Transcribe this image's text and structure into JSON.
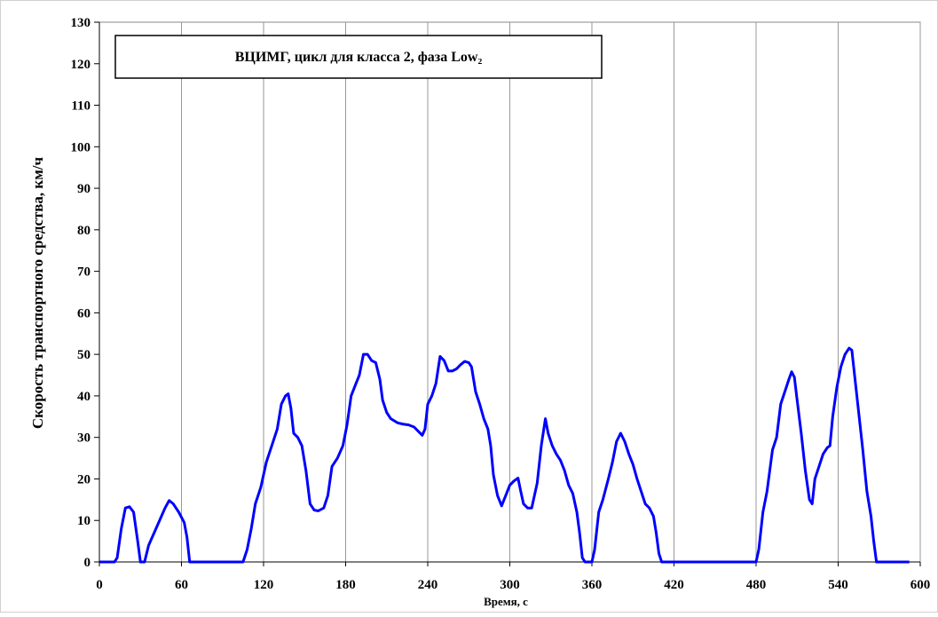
{
  "chart_data": {
    "type": "line",
    "title": "ВЦИМГ, цикл для класса 2, фаза Low₂",
    "xlabel": "Время, с",
    "ylabel": "Скорость транспортного средства, км/ч",
    "xlim": [
      0,
      600
    ],
    "xticks": [
      0,
      60,
      120,
      180,
      240,
      300,
      360,
      420,
      480,
      540,
      600
    ],
    "ylim": [
      0,
      130
    ],
    "yticks": [
      0,
      10,
      20,
      30,
      40,
      50,
      60,
      70,
      80,
      90,
      100,
      110,
      120,
      130
    ],
    "grid": "x",
    "series": [
      {
        "color": "#0000ff",
        "x": [
          0,
          11,
          13,
          16,
          19,
          22,
          25,
          28,
          30,
          33,
          36,
          40,
          44,
          48,
          51,
          54,
          58,
          62,
          64,
          66,
          105,
          108,
          111,
          114,
          118,
          122,
          126,
          130,
          133,
          136,
          138,
          140,
          142,
          145,
          148,
          151,
          154,
          157,
          160,
          164,
          167,
          170,
          174,
          178,
          181,
          184,
          187,
          190,
          193,
          196,
          199,
          202,
          205,
          207,
          210,
          213,
          218,
          222,
          226,
          230,
          233,
          236,
          238,
          240,
          243,
          246,
          249,
          252,
          255,
          258,
          261,
          264,
          267,
          270,
          272,
          275,
          278,
          281,
          284,
          286,
          288,
          291,
          294,
          297,
          300,
          303,
          306,
          308,
          310,
          313,
          316,
          320,
          323,
          326,
          328,
          331,
          334,
          337,
          340,
          343,
          346,
          349,
          351,
          353,
          355,
          360,
          362,
          365,
          368,
          372,
          375,
          378,
          381,
          384,
          387,
          390,
          393,
          396,
          399,
          402,
          405,
          407,
          409,
          411,
          480,
          482,
          485,
          488,
          492,
          495,
          498,
          501,
          504,
          506,
          508,
          510,
          513,
          516,
          519,
          521,
          523,
          526,
          529,
          532,
          534,
          536,
          539,
          542,
          545,
          548,
          550,
          552,
          555,
          558,
          561,
          564,
          566,
          568,
          592
        ],
        "values": [
          0,
          0,
          1,
          8,
          13,
          13.3,
          12,
          5,
          0,
          0,
          4,
          7,
          10,
          13,
          14.8,
          14,
          12,
          9.5,
          6,
          0,
          0,
          3,
          8,
          14,
          18,
          24,
          28,
          32,
          38,
          40,
          40.5,
          37,
          31,
          30,
          28,
          22,
          14,
          12.5,
          12.3,
          13,
          16,
          23,
          25,
          28,
          33,
          40,
          42.5,
          45,
          50,
          50,
          48.5,
          48,
          44,
          39,
          36,
          34.5,
          33.5,
          33.2,
          33,
          32.5,
          31.5,
          30.5,
          32,
          38,
          40,
          43,
          49.5,
          48.5,
          46,
          46,
          46.5,
          47.5,
          48.3,
          48,
          47,
          41,
          38,
          34.5,
          32,
          28,
          21,
          16,
          13.5,
          16,
          18.5,
          19.5,
          20.2,
          17,
          14,
          13,
          13,
          19,
          28,
          34.5,
          31,
          28,
          26,
          24.5,
          22,
          18.5,
          16.5,
          12,
          7,
          1,
          0,
          0,
          3,
          12,
          15,
          20,
          24,
          29,
          31,
          29,
          26,
          23.5,
          20,
          17,
          14,
          13,
          11,
          7,
          2,
          0,
          0,
          3,
          12,
          17,
          27,
          30,
          38,
          41,
          44,
          45.8,
          44.5,
          39,
          31,
          22,
          15,
          14,
          20,
          23,
          26,
          27.5,
          28,
          35,
          42,
          47,
          50,
          51.5,
          51,
          45,
          36,
          27,
          17,
          11,
          5,
          0,
          0
        ]
      }
    ]
  }
}
